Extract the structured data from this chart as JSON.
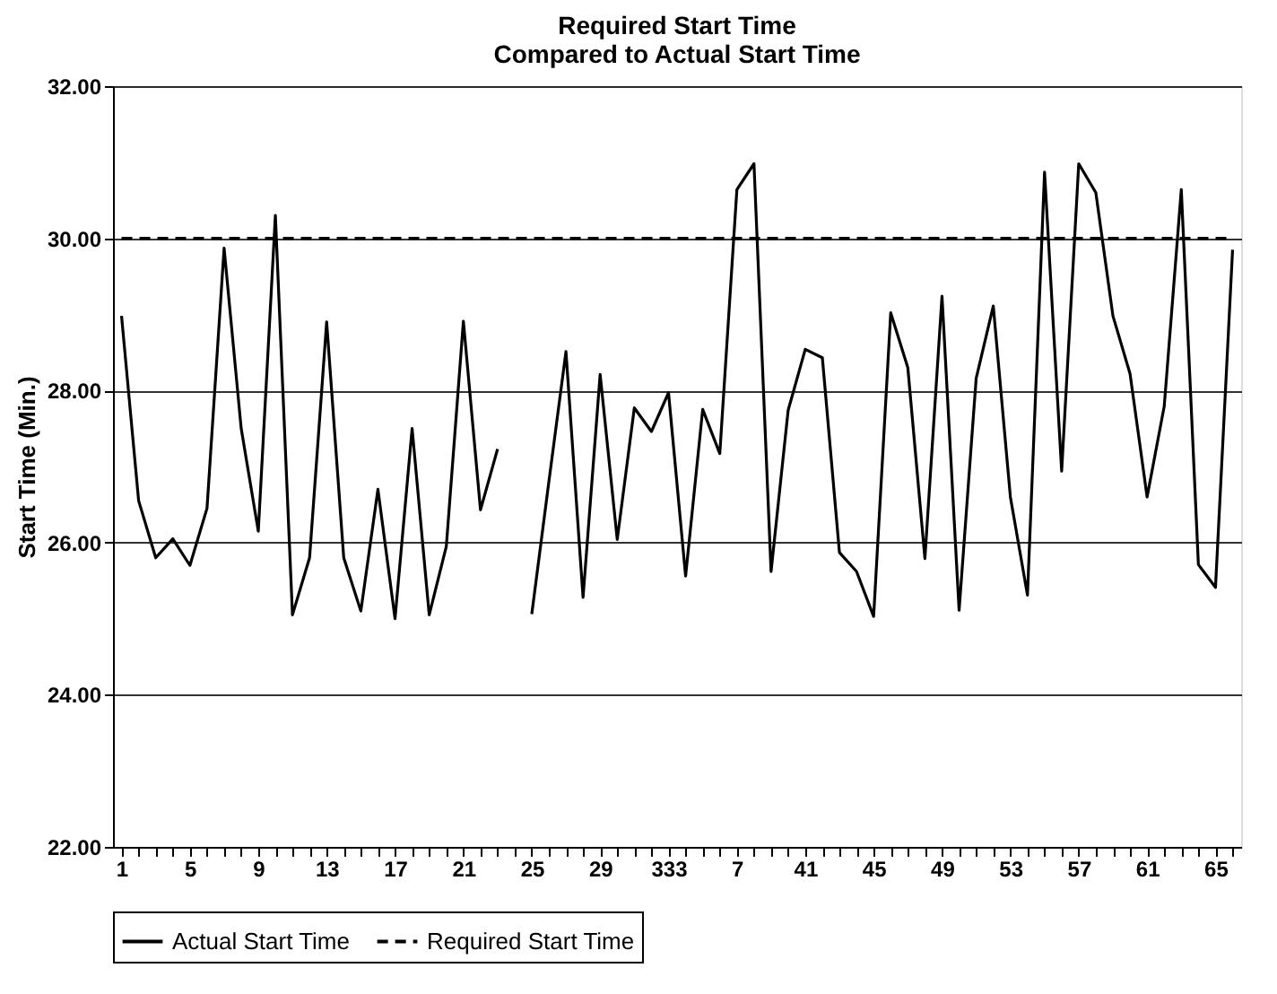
{
  "chart_data": {
    "type": "line",
    "title": [
      "Required Start Time",
      "Compared to Actual Start Time"
    ],
    "ylabel": "Start Time (Min.)",
    "categories": [
      "1",
      null,
      null,
      null,
      "5",
      null,
      null,
      null,
      "9",
      null,
      null,
      null,
      "13",
      null,
      null,
      null,
      "17",
      null,
      null,
      null,
      "21",
      null,
      null,
      null,
      "25",
      null,
      null,
      null,
      "29",
      null,
      null,
      null,
      "333",
      null,
      null,
      null,
      "7",
      null,
      null,
      null,
      "41",
      null,
      null,
      null,
      "45",
      null,
      null,
      null,
      "49",
      null,
      null,
      null,
      "53",
      null,
      null,
      null,
      "57",
      null,
      null,
      null,
      "61",
      null,
      null,
      null,
      "65",
      null
    ],
    "series": [
      {
        "name": "Actual Start Time",
        "color": "#000000",
        "line_style": "solid",
        "values": [
          28.98,
          26.55,
          25.8,
          26.05,
          25.7,
          26.45,
          29.87,
          27.5,
          26.15,
          30.3,
          25.05,
          25.8,
          28.9,
          25.8,
          25.1,
          26.7,
          25.0,
          27.5,
          25.05,
          25.95,
          28.91,
          26.43,
          27.23,
          null,
          25.06,
          26.8,
          28.51,
          25.28,
          28.21,
          26.04,
          27.77,
          27.46,
          27.97,
          25.56,
          27.75,
          27.17,
          30.64,
          30.98,
          25.62,
          27.74,
          28.54,
          28.43,
          25.87,
          25.62,
          25.03,
          29.02,
          28.3,
          25.79,
          29.24,
          25.11,
          28.16,
          29.11,
          26.6,
          25.31,
          30.87,
          26.94,
          30.98,
          30.6,
          28.98,
          28.22,
          26.6,
          27.79,
          30.64,
          25.71,
          25.41,
          29.85
        ]
      },
      {
        "name": "Required Start Time",
        "color": "#000000",
        "line_style": "dashed",
        "values": [
          30,
          30,
          30,
          30,
          30,
          30,
          30,
          30,
          30,
          30,
          30,
          30,
          30,
          30,
          30,
          30,
          30,
          30,
          30,
          30,
          30,
          30,
          30,
          30,
          30,
          30,
          30,
          30,
          30,
          30,
          30,
          30,
          30,
          30,
          30,
          30,
          30,
          30,
          30,
          30,
          30,
          30,
          30,
          30,
          30,
          30,
          30,
          30,
          30,
          30,
          30,
          30,
          30,
          30,
          30,
          30,
          30,
          30,
          30,
          30,
          30,
          30,
          30,
          30,
          30,
          30
        ]
      }
    ],
    "ylim": [
      22,
      32
    ],
    "yticks": [
      {
        "value": 22,
        "label": "22.00"
      },
      {
        "value": 24,
        "label": "24.00"
      },
      {
        "value": 26,
        "label": "26.00"
      },
      {
        "value": 28,
        "label": "28.00"
      },
      {
        "value": 30,
        "label": "30.00"
      },
      {
        "value": 32,
        "label": "32.00"
      }
    ],
    "grid": "y",
    "legend": "bottom",
    "marker": "none"
  }
}
